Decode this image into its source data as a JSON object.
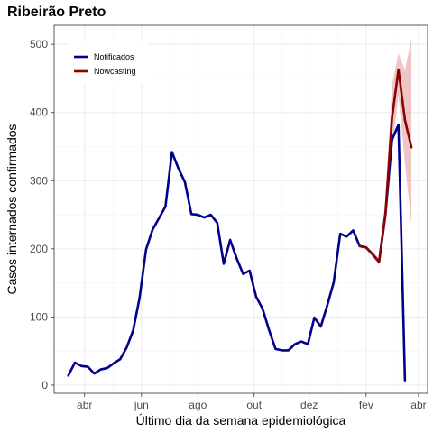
{
  "chart_data": {
    "type": "line",
    "title": "Ribeirão Preto",
    "xlabel": "Último dia da semana epidemiológica",
    "ylabel": "Casos internados confirmados",
    "ylim": [
      -12,
      528
    ],
    "yticks": [
      0,
      100,
      200,
      300,
      400,
      500
    ],
    "xlim": [
      -2.2,
      55.5
    ],
    "xticks": [
      {
        "label": "abr",
        "x": 2.5
      },
      {
        "label": "jun",
        "x": 11.3
      },
      {
        "label": "ago",
        "x": 20.0
      },
      {
        "label": "out",
        "x": 28.7
      },
      {
        "label": "dez",
        "x": 37.2
      },
      {
        "label": "fev",
        "x": 46.0
      },
      {
        "label": "abr",
        "x": 54.1
      }
    ],
    "grid": true,
    "legend": "top-left",
    "series": [
      {
        "name": "Notificados",
        "color": "#00008B",
        "x": [
          0,
          1,
          2,
          3,
          4,
          5,
          6,
          7,
          8,
          9,
          10,
          11,
          12,
          13,
          14,
          15,
          16,
          17,
          18,
          19,
          20,
          21,
          22,
          23,
          24,
          25,
          26,
          27,
          28,
          29,
          30,
          31,
          32,
          33,
          34,
          35,
          36,
          37,
          38,
          39,
          40,
          41,
          42,
          43,
          44,
          45,
          46,
          47,
          48,
          49,
          50,
          51,
          52
        ],
        "values": [
          14,
          33,
          28,
          27,
          17,
          23,
          25,
          32,
          38,
          55,
          80,
          128,
          199,
          228,
          245,
          262,
          342,
          318,
          298,
          251,
          250,
          246,
          250,
          238,
          178,
          213,
          186,
          163,
          168,
          130,
          112,
          81,
          53,
          51,
          51,
          60,
          64,
          60,
          99,
          86,
          117,
          151,
          222,
          218,
          227,
          204,
          202,
          192,
          181,
          251,
          360,
          382,
          7
        ]
      },
      {
        "name": "Nowcasting",
        "color": "#8B0000",
        "x": [
          45,
          46,
          47,
          48,
          49,
          50,
          51,
          52,
          53
        ],
        "values": [
          204,
          202,
          192,
          181,
          253,
          392,
          463,
          389,
          349
        ],
        "band_upper": [
          204,
          204,
          196,
          186,
          275,
          440,
          487,
          462,
          508
        ],
        "band_lower": [
          204,
          200,
          188,
          176,
          236,
          342,
          425,
          326,
          235
        ]
      }
    ]
  }
}
